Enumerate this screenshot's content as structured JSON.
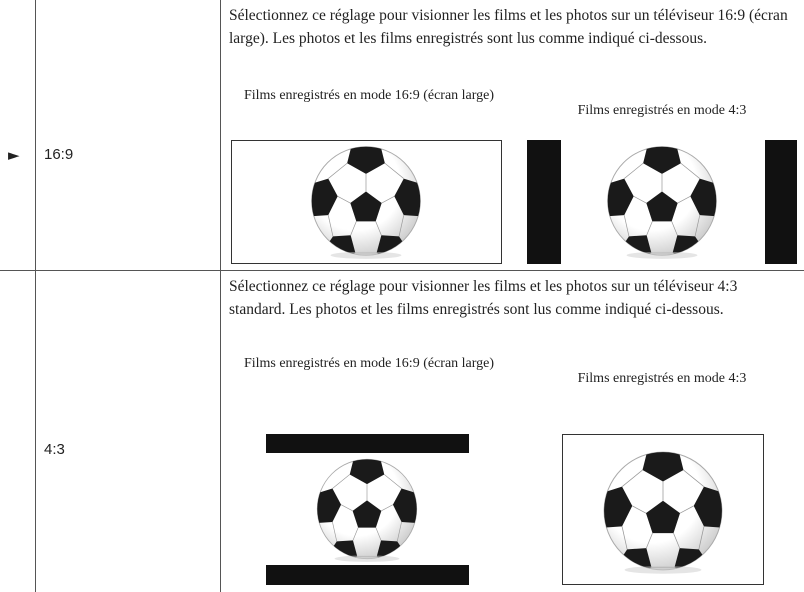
{
  "table": {
    "rows": [
      {
        "marker": "►",
        "option": "16:9",
        "description": "Sélectionnez ce réglage pour visionner les films et les photos sur un téléviseur 16:9 (écran large). Les photos et les films enregistrés sont lus comme indiqué ci-dessous.",
        "captions": [
          "Films enregistrés en mode 16:9 (écran large)",
          "Films enregistrés en mode 4:3"
        ]
      },
      {
        "option": "4:3",
        "description": "Sélectionnez ce réglage pour visionner les films et les photos sur un téléviseur 4:3 standard. Les photos et les films enregistrés sont lus comme indiqué ci-dessous.",
        "captions": [
          "Films enregistrés en mode 16:9 (écran large)",
          "Films enregistrés en mode 4:3"
        ]
      }
    ]
  }
}
